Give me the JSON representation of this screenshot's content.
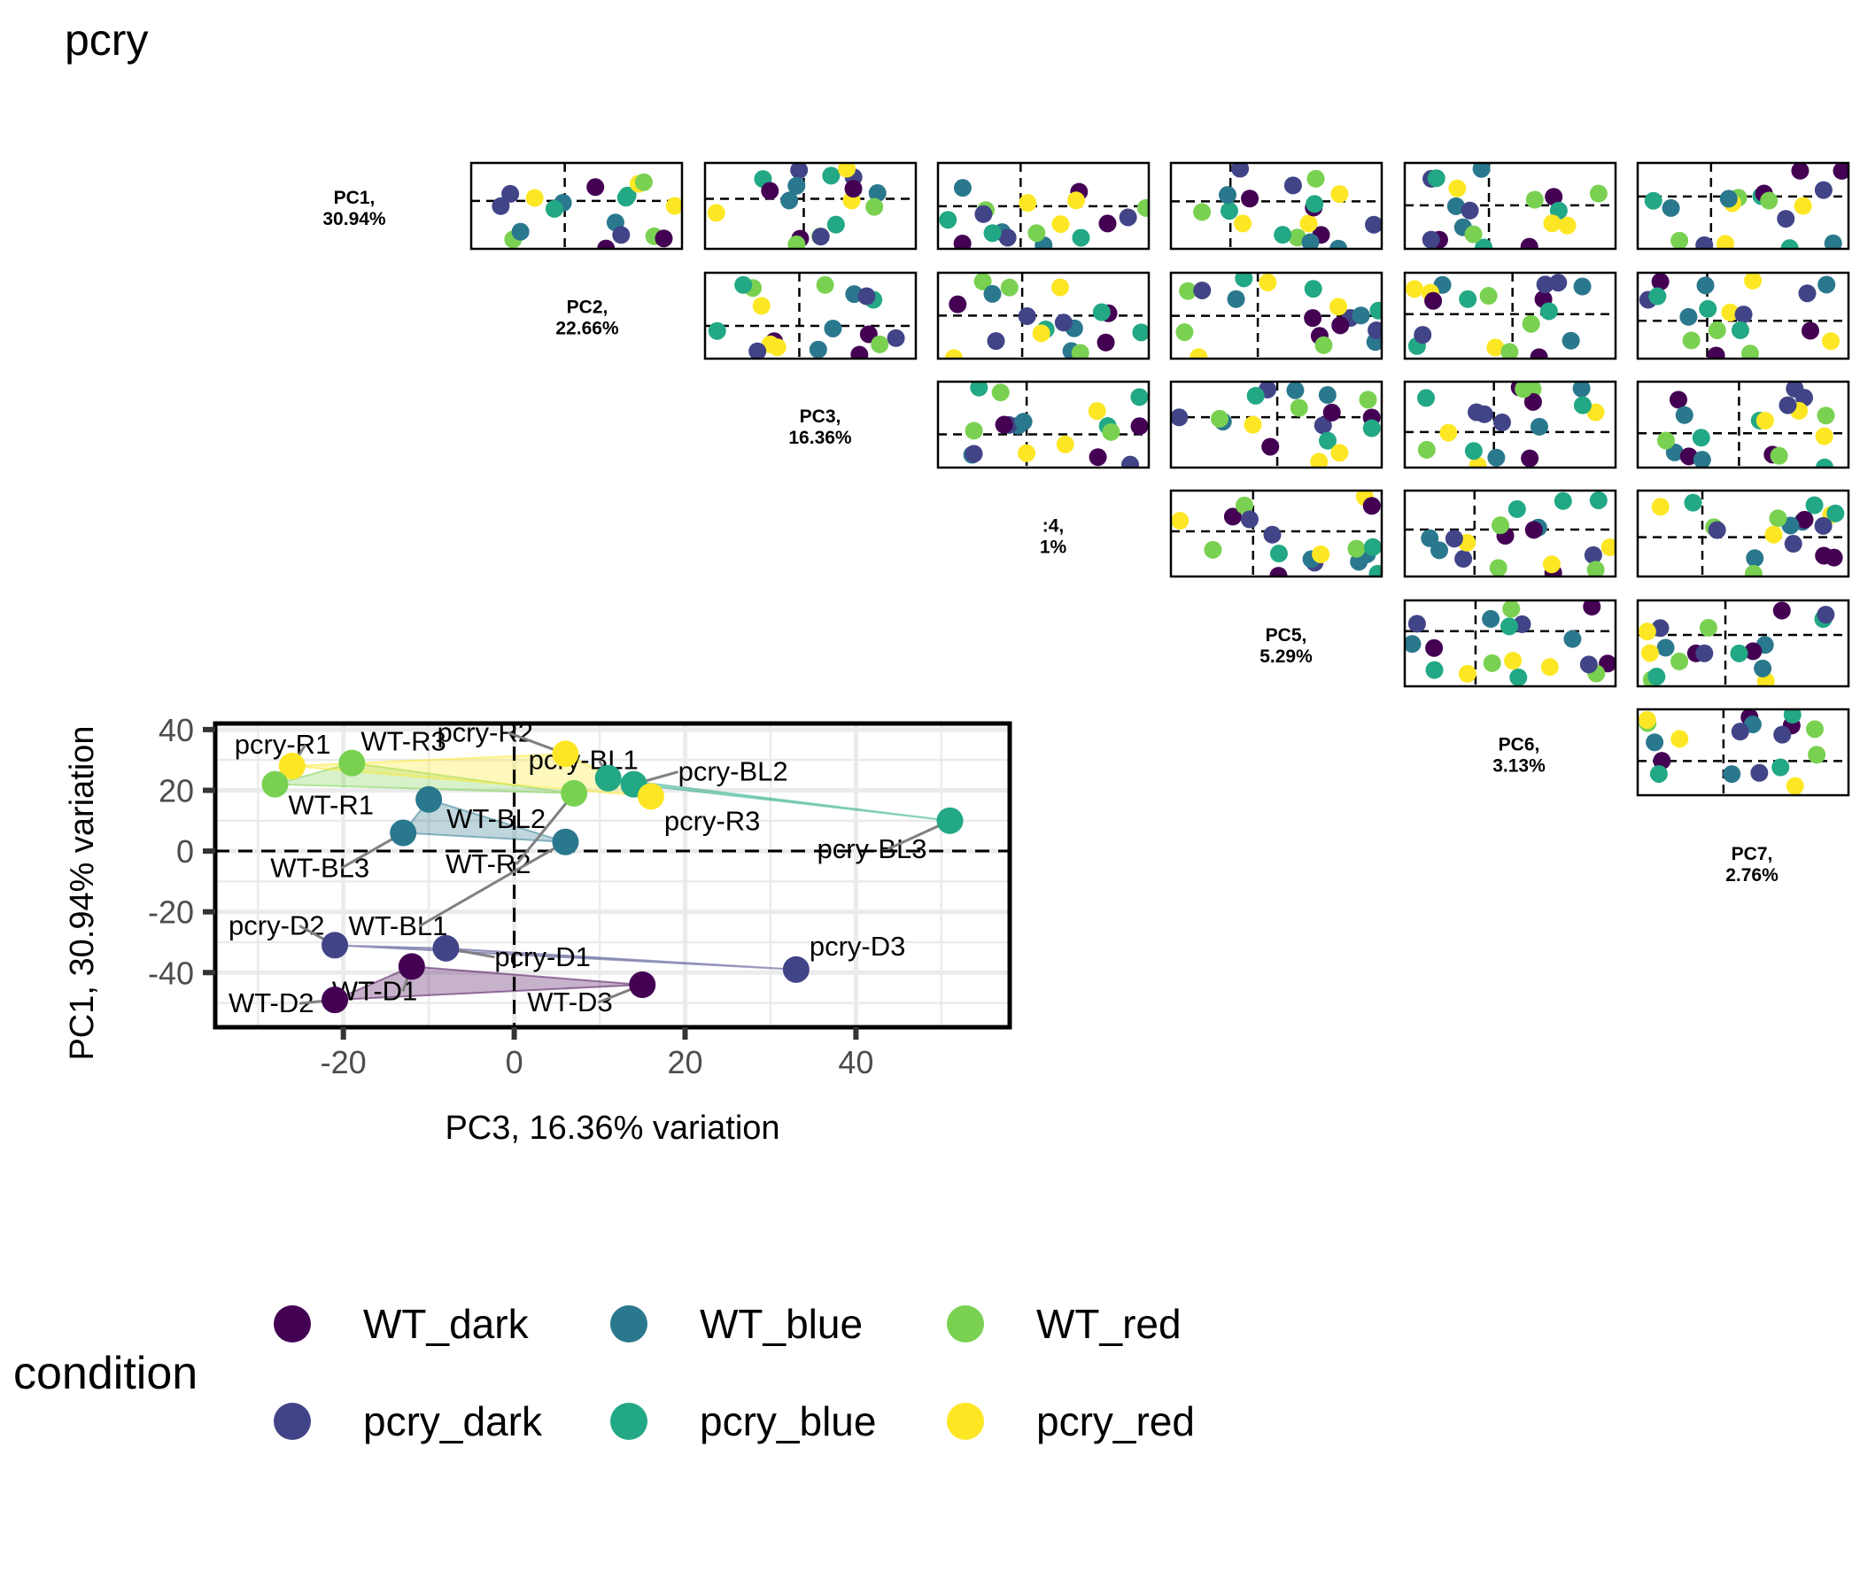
{
  "title": "pcry",
  "chart_data": {
    "type": "scatter",
    "title": "pcry",
    "colors": {
      "WT_dark": "#440154",
      "WT_blue": "#2a788e",
      "WT_red": "#7ad151",
      "pcry_dark": "#414487",
      "pcry_blue": "#22a884",
      "pcry_red": "#fde725"
    },
    "main_plot": {
      "xlabel": "PC3, 16.36% variation",
      "ylabel": "PC1, 30.94% variation",
      "xlim": [
        -35,
        58
      ],
      "ylim": [
        -58,
        42
      ],
      "xticks": [
        -20,
        0,
        20,
        40
      ],
      "yticks": [
        -40,
        -20,
        0,
        20,
        40
      ],
      "xtick_labels": [
        "-20",
        "0",
        "20",
        "40"
      ],
      "ytick_labels": [
        "-40",
        "-20",
        "0",
        "20",
        "40"
      ],
      "points": [
        {
          "label": "pcry-R1",
          "group": "pcry_red",
          "x": -26,
          "y": 28
        },
        {
          "label": "WT-R1",
          "group": "WT_red",
          "x": -28,
          "y": 22
        },
        {
          "label": "WT-R3",
          "group": "WT_red",
          "x": -19,
          "y": 29
        },
        {
          "label": "pcry-R2",
          "group": "pcry_red",
          "x": 6,
          "y": 32
        },
        {
          "label": "pcry-BL1",
          "group": "pcry_blue",
          "x": 11,
          "y": 24
        },
        {
          "label": "pcry-BL2",
          "group": "pcry_blue",
          "x": 14,
          "y": 22
        },
        {
          "label": "WT-R2",
          "group": "WT_red",
          "x": 7,
          "y": 19
        },
        {
          "label": "pcry-R3",
          "group": "pcry_red",
          "x": 16,
          "y": 18
        },
        {
          "label": "pcry-BL3",
          "group": "pcry_blue",
          "x": 51,
          "y": 10
        },
        {
          "label": "WT-BL2",
          "group": "WT_blue",
          "x": -10,
          "y": 17
        },
        {
          "label": "WT-BL3",
          "group": "WT_blue",
          "x": -13,
          "y": 6
        },
        {
          "label": "WT-BL1",
          "group": "WT_blue",
          "x": 6,
          "y": 3
        },
        {
          "label": "pcry-D2",
          "group": "pcry_dark",
          "x": -21,
          "y": -31
        },
        {
          "label": "pcry-D1",
          "group": "pcry_dark",
          "x": -8,
          "y": -32
        },
        {
          "label": "pcry-D3",
          "group": "pcry_dark",
          "x": 33,
          "y": -39
        },
        {
          "label": "WT-D1",
          "group": "WT_dark",
          "x": -12,
          "y": -38
        },
        {
          "label": "WT-D2",
          "group": "WT_dark",
          "x": -21,
          "y": -49
        },
        {
          "label": "WT-D3",
          "group": "WT_dark",
          "x": 15,
          "y": -44
        }
      ]
    },
    "pairs_matrix": {
      "diagonal_labels": [
        {
          "pc": "PC1,",
          "pct": "30.94%"
        },
        {
          "pc": "PC2,",
          "pct": "22.66%"
        },
        {
          "pc": "PC3,",
          "pct": "16.36%"
        },
        {
          "pc": ":4,",
          "pct": "1%"
        },
        {
          "pc": "PC5,",
          "pct": "5.29%"
        },
        {
          "pc": "PC6,",
          "pct": "3.13%"
        },
        {
          "pc": "PC7,",
          "pct": "2.76%"
        }
      ]
    },
    "legend": {
      "title": "condition",
      "position": "bottom",
      "entries": [
        "WT_dark",
        "WT_blue",
        "WT_red",
        "pcry_dark",
        "pcry_blue",
        "pcry_red"
      ]
    }
  }
}
